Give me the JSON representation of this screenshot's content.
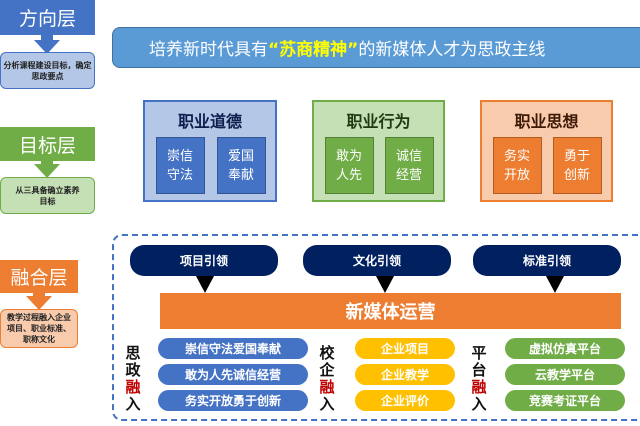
{
  "layers": [
    {
      "title": "方向层",
      "desc": "分析课程建设目标，确定思政要点",
      "color": "#4472c4",
      "desc_color": "#b4c7e7"
    },
    {
      "title": "目标层",
      "desc": "从三具备确立素养目标",
      "color": "#70ad47",
      "desc_color": "#c5e0b4"
    },
    {
      "title": "融合层",
      "desc": "教学过程融入企业项目、职业标准、职称文化",
      "color": "#ed7d31",
      "desc_color": "#f8cbad"
    }
  ],
  "banner": {
    "pre": "培养新时代具有",
    "highlight": "“苏商精神”",
    "post": " 的新媒体人才为思政主线"
  },
  "groups": [
    {
      "title": "职业道德",
      "items": [
        "崇信守法",
        "爱国奉献"
      ]
    },
    {
      "title": "职业行为",
      "items": [
        "敢为人先",
        "诚信经营"
      ]
    },
    {
      "title": "职业思想",
      "items": [
        "务实开放",
        "勇于创新"
      ]
    }
  ],
  "leads": [
    "项目引领",
    "文化引领",
    "标准引领"
  ],
  "center": "新媒体运营",
  "columns": [
    {
      "label": [
        "思",
        "政",
        "融",
        "入"
      ],
      "items": [
        "崇信守法爱国奉献",
        "敢为人先诚信经营",
        "务实开放勇于创新"
      ],
      "color": "#4472c4"
    },
    {
      "label": [
        "校",
        "企",
        "融",
        "入"
      ],
      "items": [
        "企业项目",
        "企业教学",
        "企业评价"
      ],
      "color": "#ffc000"
    },
    {
      "label": [
        "平",
        "台",
        "融",
        "入"
      ],
      "items": [
        "虚拟仿真平台",
        "云教学平台",
        "竞赛考证平台"
      ],
      "color": "#70ad47"
    }
  ]
}
